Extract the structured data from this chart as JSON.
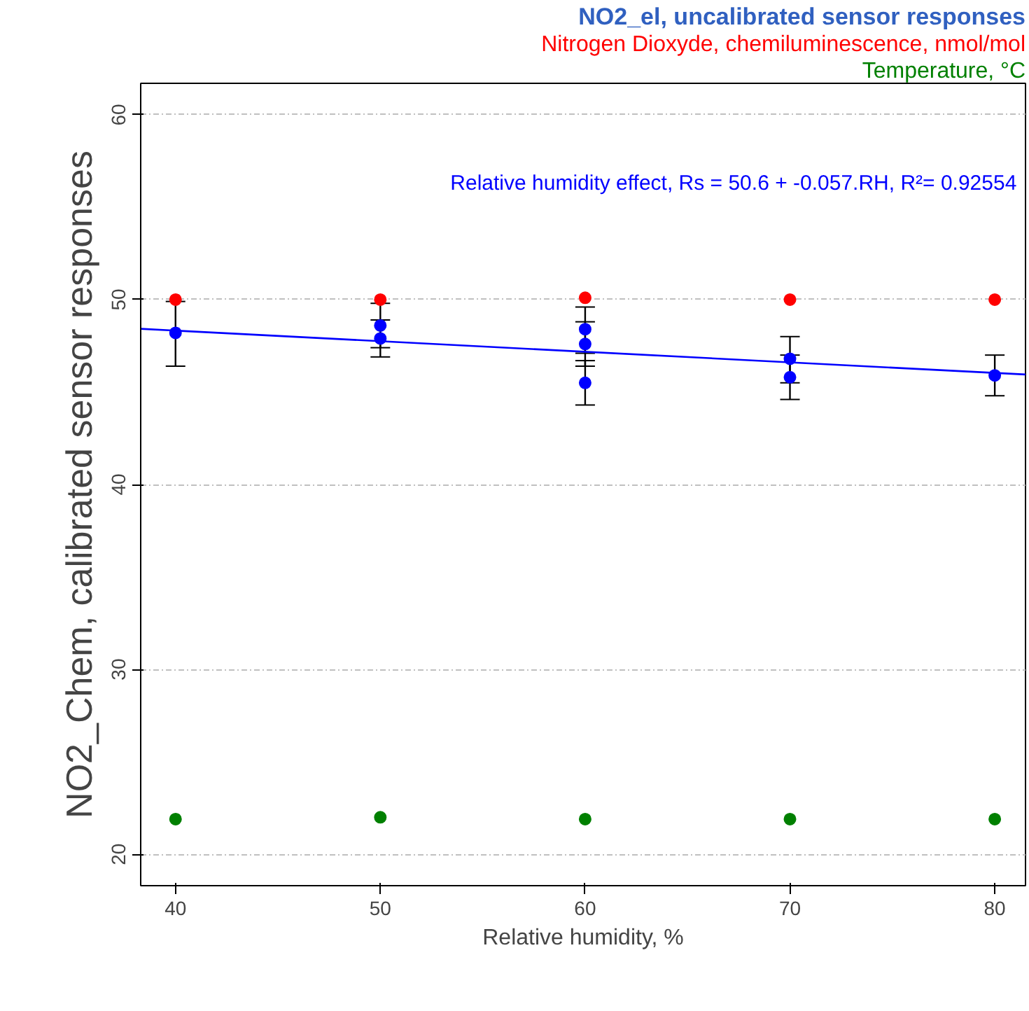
{
  "chart_data": {
    "type": "scatter",
    "title": "NO2_el, uncalibrated sensor responses",
    "xlabel": "Relative humidity, %",
    "ylabel": "NO2_Chem, calibrated sensor responses",
    "annotations": [
      "Relative humidity effect, Rs = 50.6 + -0.057.RH, R²= 0.92554"
    ],
    "xlim": [
      38.3,
      81.5
    ],
    "ylim": [
      18.3,
      61.7
    ],
    "xticks": [
      40,
      50,
      60,
      70,
      80
    ],
    "yticks": [
      20,
      30,
      40,
      50,
      60
    ],
    "grid": "y",
    "legend": "top right",
    "marker": "circle",
    "series": [
      {
        "color": "#0000ff",
        "x": [
          40,
          50,
          50,
          60,
          60,
          60,
          70,
          70,
          80
        ],
        "values": [
          48.2,
          48.6,
          47.9,
          48.4,
          47.6,
          45.5,
          46.8,
          45.8,
          45.9
        ],
        "errors": [
          [
            46.4,
            49.9
          ],
          [
            47.4,
            49.8
          ],
          [
            46.9,
            48.9
          ],
          [
            47.1,
            49.6
          ],
          [
            46.4,
            48.8
          ],
          [
            44.3,
            46.7
          ],
          [
            45.5,
            48.0
          ],
          [
            44.6,
            47.0
          ],
          [
            44.8,
            47.0
          ]
        ]
      },
      {
        "name": "Nitrogen Dioxyde, chemiluminescence, nmol/mol",
        "color": "#ff0000",
        "x": [
          40,
          50,
          60,
          70,
          80
        ],
        "values": [
          50.0,
          50.0,
          50.1,
          50.0,
          50.0
        ]
      },
      {
        "name": "Temperature, °C",
        "color": "#008000",
        "x": [
          40,
          50,
          60,
          70,
          80
        ],
        "values": [
          21.9,
          22.0,
          21.9,
          21.9,
          21.9
        ]
      },
      {
        "type": "line",
        "marker": "none",
        "color": "#0000ff",
        "x": [
          38.3,
          81.5
        ],
        "values": [
          48.42,
          45.95
        ]
      }
    ]
  }
}
